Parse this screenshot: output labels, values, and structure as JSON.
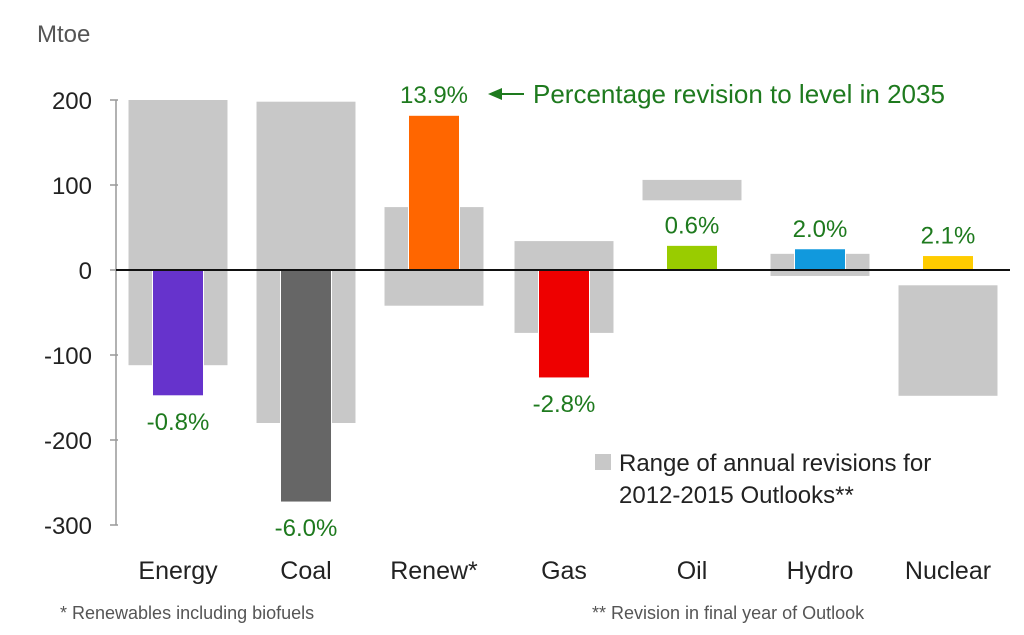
{
  "chart_data": {
    "type": "bar",
    "unit_label": "Mtoe",
    "ylim": [
      -300,
      200
    ],
    "y_ticks": [
      {
        "value": 200,
        "label": "200"
      },
      {
        "value": 100,
        "label": "100"
      },
      {
        "value": 0,
        "label": "0"
      },
      {
        "value": -100,
        "label": "-100"
      },
      {
        "value": -200,
        "label": "-200"
      },
      {
        "value": -300,
        "label": "-300"
      }
    ],
    "categories": [
      "Energy",
      "Coal",
      "Renew*",
      "Gas",
      "Oil",
      "Hydro",
      "Nuclear"
    ],
    "series": [
      {
        "name": "Range of annual revisions for 2012-2015 Outlooks**",
        "type": "range",
        "color": "#c8c8c8",
        "ranges": [
          [
            -112,
            200
          ],
          [
            -180,
            198
          ],
          [
            -42,
            74
          ],
          [
            -74,
            34
          ],
          [
            82,
            106
          ],
          [
            -7,
            19
          ],
          [
            -148,
            -18
          ]
        ]
      },
      {
        "name": "Revision in final year of Outlook",
        "values": [
          -148,
          -273,
          182,
          -127,
          29,
          25,
          17
        ],
        "colors": [
          "#6633cc",
          "#666666",
          "#ff6600",
          "#ee0000",
          "#99cc00",
          "#1199dd",
          "#ffcc00"
        ],
        "pct_labels": [
          "-0.8%",
          "-6.0%",
          "13.9%",
          "-2.8%",
          "0.6%",
          "2.0%",
          "2.1%"
        ]
      }
    ],
    "annotation": "Percentage revision to level in 2035",
    "legend_text": [
      "Range of annual revisions for",
      "2012-2015 Outlooks**"
    ],
    "label_color": "#1e7a1e"
  },
  "footnotes": {
    "left": "* Renewables including biofuels",
    "right": "** Revision in final year of Outlook"
  }
}
